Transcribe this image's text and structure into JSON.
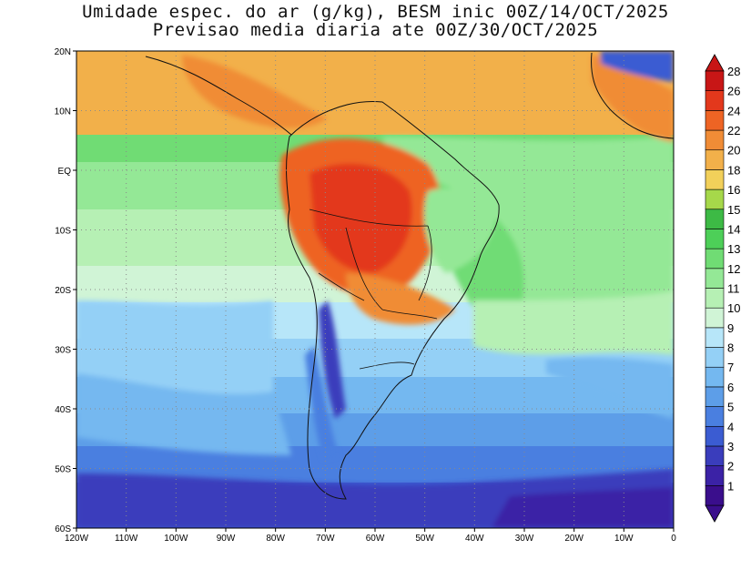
{
  "title_line1": "Umidade espec. do ar (g/kg), BESM inic 00Z/14/OCT/2025",
  "title_line2": "Previsao media diaria ate 00Z/30/OCT/2025",
  "map": {
    "lat_labels": [
      "20N",
      "10N",
      "EQ",
      "10S",
      "20S",
      "30S",
      "40S",
      "50S",
      "60S"
    ],
    "lon_labels": [
      "120W",
      "110W",
      "100W",
      "90W",
      "80W",
      "70W",
      "60W",
      "50W",
      "40W",
      "30W",
      "20W",
      "10W",
      "0"
    ],
    "grid": "dotted",
    "region": "South America and adjacent oceans"
  },
  "colorbar": {
    "labels": [
      "1",
      "2",
      "3",
      "4",
      "5",
      "6",
      "7",
      "8",
      "9",
      "10",
      "11",
      "12",
      "13",
      "14",
      "15",
      "16",
      "18",
      "20",
      "22",
      "24",
      "26",
      "28"
    ],
    "colors": [
      "#3a0e8c",
      "#3b22a6",
      "#3a3dbc",
      "#3b5cd2",
      "#4a7fe0",
      "#5d9ee8",
      "#74b8f0",
      "#94d0f6",
      "#b7e6f9",
      "#d0f4d6",
      "#b6f0b4",
      "#94e896",
      "#70dc74",
      "#4dcf58",
      "#3dba45",
      "#a6d84a",
      "#f2d05a",
      "#f2b04a",
      "#f08c36",
      "#ee6424",
      "#e3381c",
      "#c81616"
    ]
  }
}
